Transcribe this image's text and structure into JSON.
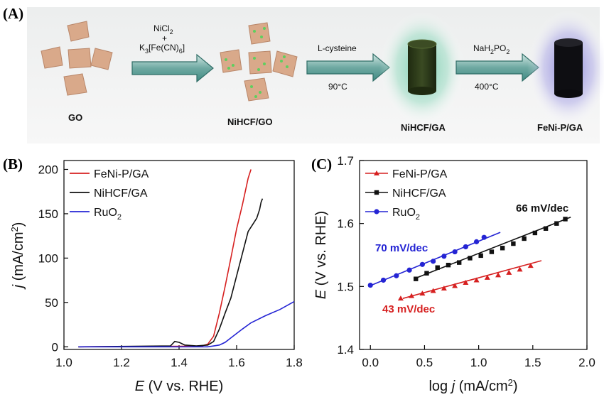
{
  "panels": {
    "a": "(A)",
    "b": "(B)",
    "c": "(C)"
  },
  "scheme": {
    "labels": [
      "GO",
      "NiHCF/GO",
      "NiHCF/GA",
      "FeNi-P/GA"
    ],
    "arrows": [
      {
        "top_main": "NiCl",
        "top_sub": "2",
        "mid": "+",
        "bot_main": "K",
        "bot_sub": "3",
        "bot_rest": "[Fe(CN)",
        "bot_sub2": "6",
        "bot_end": "]"
      },
      {
        "top": "L-cysteine",
        "bottom": "90°C"
      },
      {
        "top_main": "NaH",
        "top_sub": "2",
        "top_rest": "PO",
        "top_sub2": "2",
        "bottom": "400°C"
      }
    ],
    "colors": {
      "sheet": "#d9a98a",
      "dot": "#5ecf5e",
      "arrow": "#3f8a82",
      "gel": "#2c3a18",
      "glow_green": "#63c6a3",
      "glow_purple": "#7a74d6",
      "dark": "#111111"
    }
  },
  "chart_data": [
    {
      "type": "line",
      "panel": "(B)",
      "xlabel_var": "E",
      "xlabel_rest": " (V vs. RHE)",
      "ylabel_var": "j",
      "ylabel_main": " (mA/cm",
      "ylabel_sup": "2",
      "ylabel_end": ")",
      "xlim": [
        1.0,
        1.8
      ],
      "ylim": [
        -3,
        210
      ],
      "xticks": [
        1.0,
        1.2,
        1.4,
        1.6,
        1.8
      ],
      "xtick_labels": [
        "1.0",
        "1.2",
        "1.4",
        "1.6",
        "1.8"
      ],
      "yticks": [
        0,
        50,
        100,
        150,
        200
      ],
      "ytick_labels": [
        "0",
        "50",
        "100",
        "150",
        "200"
      ],
      "legend_position": "top-left",
      "series": [
        {
          "name": "FeNi-P/GA",
          "color": "#d62020",
          "x": [
            1.05,
            1.4,
            1.48,
            1.5,
            1.52,
            1.54,
            1.56,
            1.58,
            1.6,
            1.62,
            1.64,
            1.65
          ],
          "y": [
            0,
            0.5,
            1,
            3,
            12,
            38,
            68,
            100,
            133,
            160,
            190,
            200
          ]
        },
        {
          "name": "NiHCF/GA",
          "color": "#111111",
          "x": [
            1.05,
            1.37,
            1.385,
            1.4,
            1.42,
            1.46,
            1.5,
            1.52,
            1.54,
            1.56,
            1.58,
            1.6,
            1.62,
            1.64,
            1.66,
            1.67,
            1.68,
            1.685,
            1.69
          ],
          "y": [
            0,
            1,
            6,
            5,
            2,
            1,
            2,
            6,
            20,
            38,
            55,
            80,
            105,
            130,
            140,
            145,
            155,
            163,
            167
          ]
        },
        {
          "name": "RuO_2",
          "legend_main": "RuO",
          "legend_sub": "2",
          "color": "#2424d4",
          "x": [
            1.05,
            1.5,
            1.54,
            1.56,
            1.58,
            1.6,
            1.62,
            1.65,
            1.7,
            1.75,
            1.8
          ],
          "y": [
            0,
            0,
            2,
            5,
            10,
            15,
            20,
            27,
            35,
            42,
            51
          ]
        }
      ]
    },
    {
      "type": "scatter",
      "panel": "(C)",
      "xlabel_main": "log ",
      "xlabel_var": "j",
      "xlabel_rest": " (mA/cm",
      "xlabel_sup": "2",
      "xlabel_end": ")",
      "ylabel_var": "E",
      "ylabel_rest": " (V vs. RHE)",
      "xlim": [
        -0.1,
        2.0
      ],
      "ylim": [
        1.4,
        1.7
      ],
      "xticks": [
        0.0,
        0.5,
        1.0,
        1.5,
        2.0
      ],
      "xtick_labels": [
        "0.0",
        "0.5",
        "1.0",
        "1.5",
        "2.0"
      ],
      "yticks": [
        1.4,
        1.5,
        1.6,
        1.7
      ],
      "ytick_labels": [
        "1.4",
        "1.5",
        "1.6",
        "1.7"
      ],
      "legend_position": "top-left",
      "series": [
        {
          "name": "FeNi-P/GA",
          "color": "#d62020",
          "marker": "triangle",
          "x": [
            0.28,
            0.38,
            0.48,
            0.58,
            0.68,
            0.78,
            0.88,
            0.98,
            1.08,
            1.18,
            1.28,
            1.38,
            1.48
          ],
          "y": [
            1.481,
            1.485,
            1.489,
            1.493,
            1.497,
            1.501,
            1.506,
            1.51,
            1.514,
            1.518,
            1.522,
            1.527,
            1.533
          ],
          "fit_x": [
            0.3,
            1.58
          ],
          "fit_y": [
            1.481,
            1.541
          ],
          "slope_label": "43 mV/dec"
        },
        {
          "name": "NiHCF/GA",
          "color": "#111111",
          "marker": "square",
          "x": [
            0.42,
            0.52,
            0.62,
            0.72,
            0.82,
            0.92,
            1.02,
            1.12,
            1.22,
            1.32,
            1.42,
            1.52,
            1.62,
            1.72,
            1.8
          ],
          "y": [
            1.512,
            1.521,
            1.53,
            1.534,
            1.538,
            1.545,
            1.549,
            1.555,
            1.561,
            1.568,
            1.576,
            1.585,
            1.592,
            1.6,
            1.607
          ],
          "fit_x": [
            0.4,
            1.85
          ],
          "fit_y": [
            1.512,
            1.61
          ],
          "slope_label": "66 mV/dec"
        },
        {
          "name": "RuO_2",
          "legend_main": "RuO",
          "legend_sub": "2",
          "color": "#2424d4",
          "marker": "circle",
          "x": [
            0.0,
            0.12,
            0.24,
            0.36,
            0.48,
            0.58,
            0.68,
            0.78,
            0.88,
            0.98,
            1.05
          ],
          "y": [
            1.502,
            1.51,
            1.517,
            1.526,
            1.535,
            1.54,
            1.548,
            1.555,
            1.563,
            1.571,
            1.578
          ],
          "fit_x": [
            -0.02,
            1.2
          ],
          "fit_y": [
            1.5,
            1.586
          ],
          "slope_label": "70 mV/dec"
        }
      ]
    }
  ]
}
